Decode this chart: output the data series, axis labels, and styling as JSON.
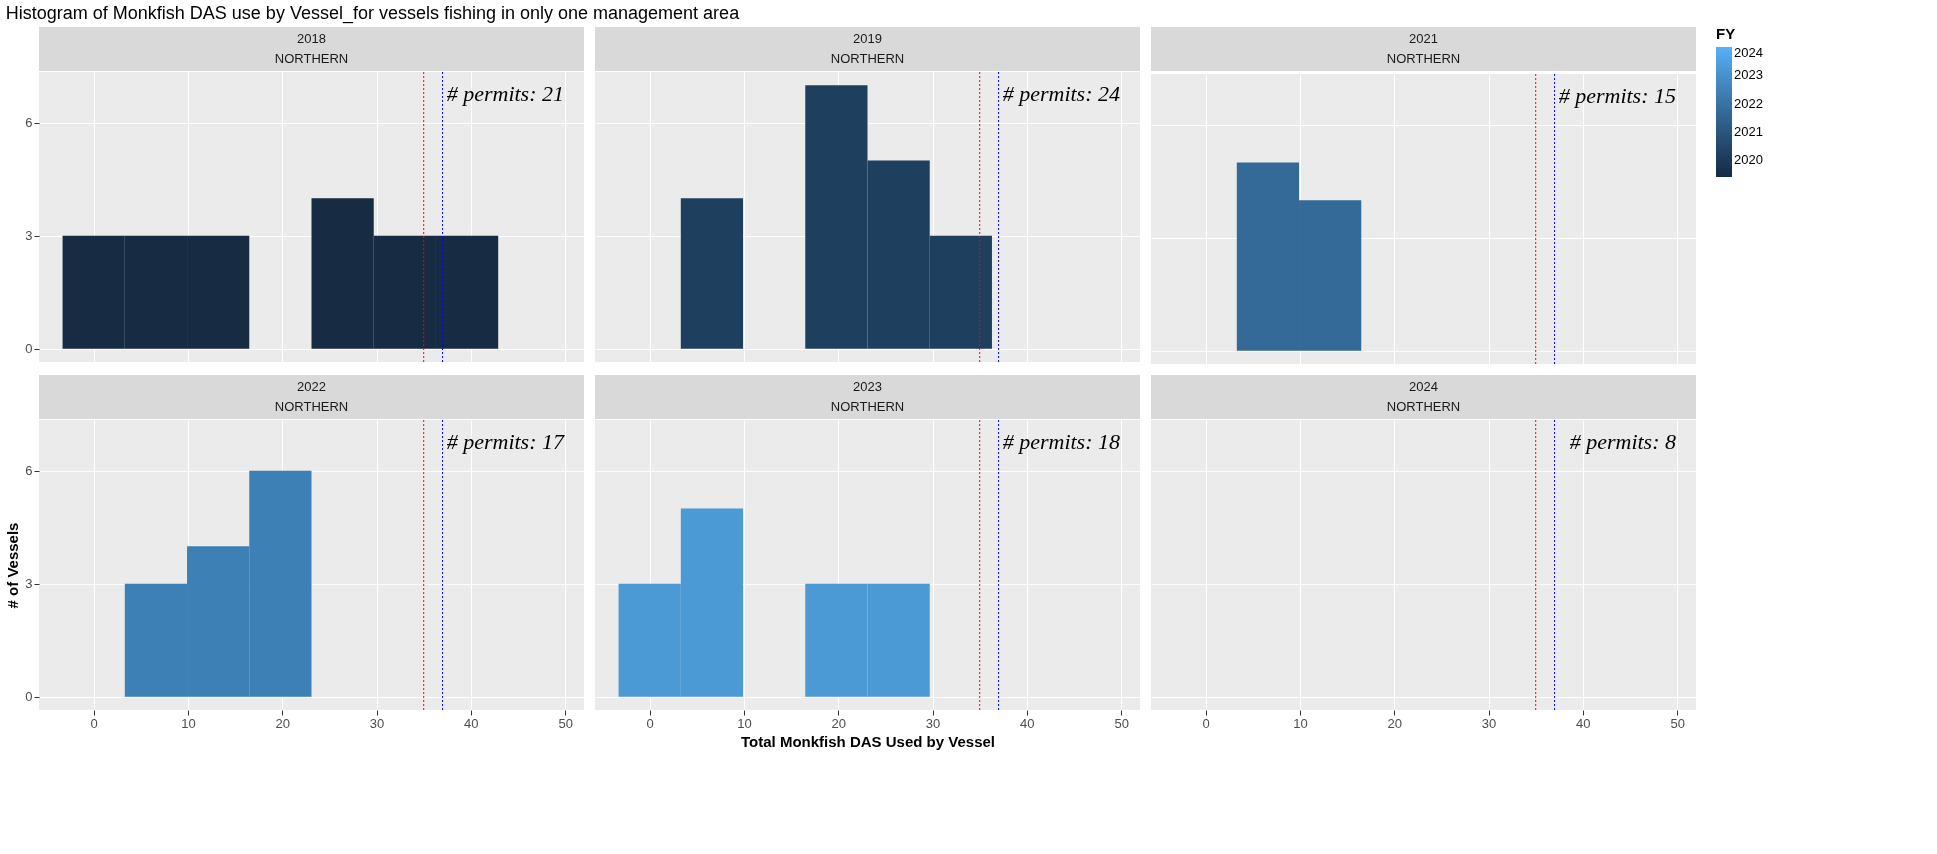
{
  "chart_data": [
    {
      "type": "other",
      "title": "Histogram of Monkfish DAS use by Vessel_for vessels fishing in only one management area"
    },
    {
      "type": "histogram",
      "title": "2018",
      "subtitle": "NORTHERN",
      "bins": [
        -3.3,
        3.3,
        9.9,
        16.5,
        23.1,
        29.7,
        36.3,
        42.9,
        49.5
      ],
      "xlim": [
        -5.8,
        52
      ],
      "xticks": [
        0,
        10,
        20,
        30,
        40,
        50
      ],
      "ylim": [
        -0.35,
        7.35
      ],
      "yticks": [
        0,
        3,
        6
      ],
      "grid": true,
      "tick_labels": "y",
      "series": [
        {
          "color": "#172b42",
          "values": [
            3,
            3,
            3,
            null,
            4,
            3,
            3,
            null
          ]
        }
      ],
      "ref_lines": [
        {
          "axis": "x",
          "value": 35,
          "color": "#ff0000",
          "line_style": "dotted"
        },
        {
          "axis": "x",
          "value": 37,
          "color": "#0000ff",
          "line_style": "dotted"
        }
      ],
      "annotations": [
        "# permits: 21"
      ]
    },
    {
      "type": "histogram",
      "title": "2019",
      "subtitle": "NORTHERN",
      "bins": [
        -3.3,
        3.3,
        9.9,
        16.5,
        23.1,
        29.7,
        36.3,
        42.9,
        49.5
      ],
      "xlim": [
        -5.8,
        52
      ],
      "xticks": [
        0,
        10,
        20,
        30,
        40,
        50
      ],
      "ylim": [
        -0.35,
        7.35
      ],
      "yticks": [
        0,
        3,
        6
      ],
      "grid": true,
      "tick_labels": false,
      "series": [
        {
          "color": "#1e3f5e",
          "values": [
            null,
            4,
            null,
            7,
            5,
            3,
            null,
            0
          ]
        }
      ],
      "ref_lines": [
        {
          "axis": "x",
          "value": 35,
          "color": "#ff0000",
          "line_style": "dotted"
        },
        {
          "axis": "x",
          "value": 37,
          "color": "#0000ff",
          "line_style": "dotted"
        }
      ],
      "annotations": [
        "# permits: 24"
      ]
    },
    {
      "type": "histogram",
      "title": "2021",
      "subtitle": "NORTHERN",
      "bins": [
        -3.3,
        3.3,
        9.9,
        16.5,
        23.1,
        29.7,
        36.3,
        42.9,
        49.5
      ],
      "xlim": [
        -5.8,
        52
      ],
      "xticks": [
        0,
        10,
        20,
        30,
        40,
        50
      ],
      "ylim": [
        -0.35,
        7.35
      ],
      "yticks": [
        0,
        3,
        6
      ],
      "grid": true,
      "tick_labels": false,
      "series": [
        {
          "color": "#346a97",
          "values": [
            null,
            5,
            4,
            null,
            null,
            0,
            0,
            0
          ]
        }
      ],
      "ref_lines": [
        {
          "axis": "x",
          "value": 35,
          "color": "#ff0000",
          "line_style": "dotted"
        },
        {
          "axis": "x",
          "value": 37,
          "color": "#0000ff",
          "line_style": "dotted"
        }
      ],
      "annotations": [
        "# permits: 15"
      ],
      "clabel": "FY",
      "clim": [
        2019.4,
        2024
      ],
      "cticks": [
        2020,
        2021,
        2022,
        2023,
        2024
      ]
    },
    {
      "type": "histogram",
      "title": "2022",
      "subtitle": "NORTHERN",
      "bins": [
        -3.3,
        3.3,
        9.9,
        16.5,
        23.1,
        29.7,
        36.3,
        42.9,
        49.5
      ],
      "xlim": [
        -5.8,
        52
      ],
      "xticks": [
        0,
        10,
        20,
        30,
        40,
        50
      ],
      "ylim": [
        -0.35,
        7.35
      ],
      "yticks": [
        0,
        3,
        6
      ],
      "grid": true,
      "ylabel": "# of Vessels",
      "series": [
        {
          "color": "#3d80b5",
          "values": [
            null,
            3,
            4,
            6,
            0,
            null,
            0,
            null
          ]
        }
      ],
      "ref_lines": [
        {
          "axis": "x",
          "value": 35,
          "color": "#ff0000",
          "line_style": "dotted"
        },
        {
          "axis": "x",
          "value": 37,
          "color": "#0000ff",
          "line_style": "dotted"
        }
      ],
      "annotations": [
        "# permits: 17"
      ]
    },
    {
      "type": "histogram",
      "title": "2023",
      "subtitle": "NORTHERN",
      "bins": [
        -3.3,
        3.3,
        9.9,
        16.5,
        23.1,
        29.7,
        36.3,
        42.9,
        49.5
      ],
      "xlim": [
        -5.8,
        52
      ],
      "xticks": [
        0,
        10,
        20,
        30,
        40,
        50
      ],
      "ylim": [
        -0.35,
        7.35
      ],
      "yticks": [
        0,
        3,
        6
      ],
      "grid": true,
      "tick_labels": "x",
      "xlabel": "Total Monkfish DAS Used by Vessel",
      "series": [
        {
          "color": "#4b99d5",
          "values": [
            3,
            5,
            null,
            3,
            3,
            null,
            0,
            null
          ]
        }
      ],
      "ref_lines": [
        {
          "axis": "x",
          "value": 35,
          "color": "#ff0000",
          "line_style": "dotted"
        },
        {
          "axis": "x",
          "value": 37,
          "color": "#0000ff",
          "line_style": "dotted"
        }
      ],
      "annotations": [
        "# permits: 18"
      ]
    },
    {
      "type": "histogram",
      "title": "2024",
      "subtitle": "NORTHERN",
      "xlim": [
        -5.8,
        52
      ],
      "xticks": [
        0,
        10,
        20,
        30,
        40,
        50
      ],
      "ylim": [
        -0.35,
        7.35
      ],
      "yticks": [
        0,
        3,
        6
      ],
      "grid": true,
      "tick_labels": "x",
      "ref_lines": [
        {
          "axis": "x",
          "value": 35,
          "color": "#ff0000",
          "line_style": "dotted"
        },
        {
          "axis": "x",
          "value": 37,
          "color": "#0000ff",
          "line_style": "dotted"
        }
      ],
      "annotations": [
        "# permits: 8"
      ]
    }
  ]
}
